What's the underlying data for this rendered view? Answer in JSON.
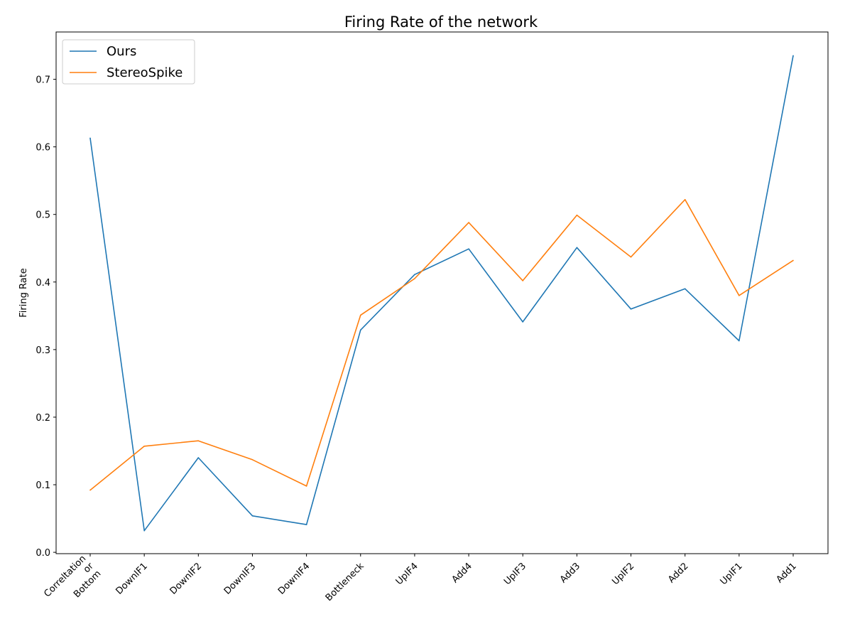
{
  "chart_data": {
    "type": "line",
    "title": "Firing Rate of the network",
    "xlabel": "",
    "ylabel": "Firing Rate",
    "categories": [
      [
        "Correltation",
        "or",
        "Bottom"
      ],
      [
        "DownIF1"
      ],
      [
        "DownIF2"
      ],
      [
        "DownIF3"
      ],
      [
        "DownIF4"
      ],
      [
        "Bottleneck"
      ],
      [
        "UpIF4"
      ],
      [
        "Add4"
      ],
      [
        "UpIF3"
      ],
      [
        "Add3"
      ],
      [
        "UpIF2"
      ],
      [
        "Add2"
      ],
      [
        "UpIF1"
      ],
      [
        "Add1"
      ]
    ],
    "series": [
      {
        "name": "Ours",
        "color": "#1f77b4",
        "values": [
          0.613,
          0.032,
          0.14,
          0.054,
          0.041,
          0.329,
          0.411,
          0.449,
          0.341,
          0.451,
          0.36,
          0.39,
          0.313,
          0.735
        ]
      },
      {
        "name": "StereoSpike",
        "color": "#ff7f0e",
        "values": [
          0.092,
          0.157,
          0.165,
          0.137,
          0.098,
          0.351,
          0.405,
          0.488,
          0.402,
          0.499,
          0.437,
          0.522,
          0.38,
          0.432
        ]
      }
    ],
    "ylim": [
      -0.002,
      0.77
    ],
    "yticks": [
      0.0,
      0.1,
      0.2,
      0.3,
      0.4,
      0.5,
      0.6,
      0.7
    ],
    "ytick_labels": [
      "0.0",
      "0.1",
      "0.2",
      "0.3",
      "0.4",
      "0.5",
      "0.6",
      "0.7"
    ],
    "grid": false,
    "legend_position": "top-left"
  }
}
